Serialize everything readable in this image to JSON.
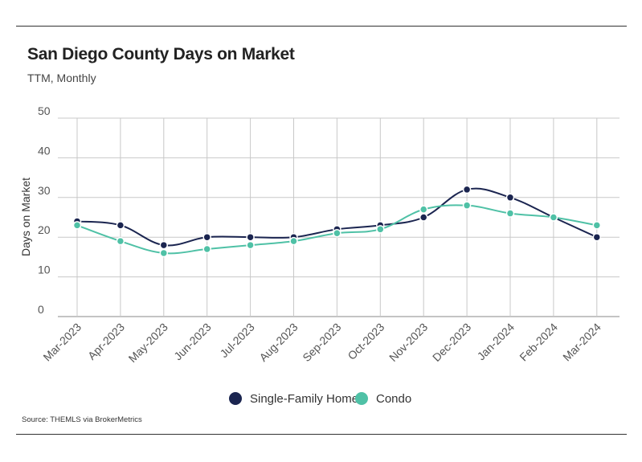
{
  "chart_data": {
    "type": "line",
    "title": "San Diego County Days on Market",
    "subtitle": "TTM, Monthly",
    "ylabel": "Days on Market",
    "xlabel": "",
    "ylim": [
      0,
      50
    ],
    "yticks": [
      0,
      10,
      20,
      30,
      40,
      50
    ],
    "categories": [
      "Mar-2023",
      "Apr-2023",
      "May-2023",
      "Jun-2023",
      "Jul-2023",
      "Aug-2023",
      "Sep-2023",
      "Oct-2023",
      "Nov-2023",
      "Dec-2023",
      "Jan-2024",
      "Feb-2024",
      "Mar-2024"
    ],
    "series": [
      {
        "name": "Single-Family Home",
        "color": "#1b2550",
        "values": [
          24,
          23,
          18,
          20,
          20,
          20,
          22,
          23,
          25,
          32,
          30,
          25,
          20
        ]
      },
      {
        "name": "Condo",
        "color": "#4fc1a6",
        "values": [
          23,
          19,
          16,
          17,
          18,
          19,
          21,
          22,
          27,
          28,
          26,
          25,
          23
        ]
      }
    ],
    "grid": true,
    "legend_position": "bottom-center"
  },
  "source": "Source:  THEMLS via BrokerMetrics"
}
